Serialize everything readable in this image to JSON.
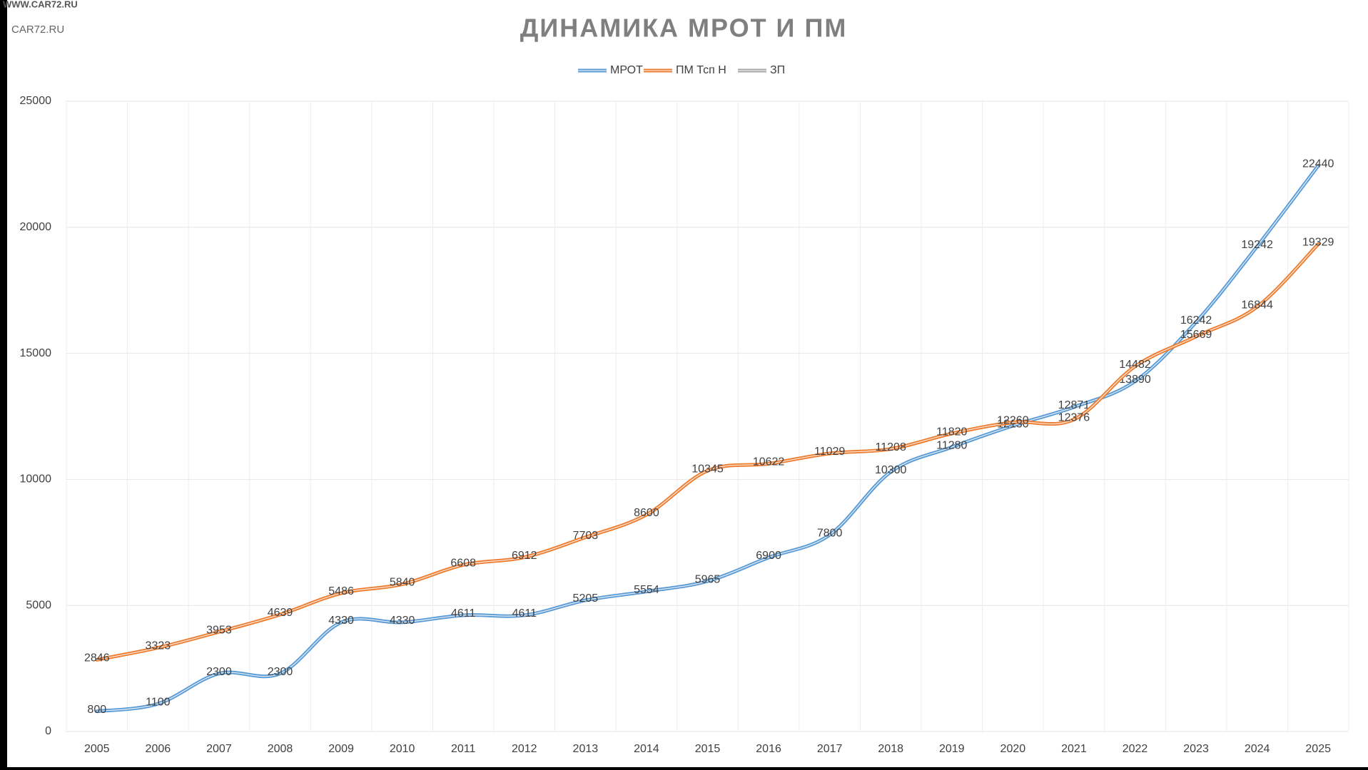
{
  "watermark": [
    "WWW.CAR72.RU",
    "CAR72.RU"
  ],
  "chart_data": {
    "type": "line",
    "title": "ДИНАМИКА МРОТ И ПМ",
    "categories": [
      "2005",
      "2006",
      "2007",
      "2008",
      "2009",
      "2010",
      "2011",
      "2012",
      "2013",
      "2014",
      "2015",
      "2016",
      "2017",
      "2018",
      "2019",
      "2020",
      "2021",
      "2022",
      "2023",
      "2024",
      "2025"
    ],
    "series": [
      {
        "name": "МРОТ",
        "color": "#5b9bd5",
        "values": [
          800,
          1100,
          2300,
          2300,
          4330,
          4330,
          4611,
          4611,
          5205,
          5554,
          5965,
          6900,
          7800,
          10300,
          11280,
          12130,
          12871,
          13890,
          16242,
          19242,
          22440
        ]
      },
      {
        "name": "ПМ Тсп Н",
        "color": "#ed7d31",
        "values": [
          2846,
          3323,
          3953,
          4639,
          5486,
          5840,
          6608,
          6912,
          7703,
          8600,
          10345,
          10622,
          11029,
          11208,
          11820,
          12260,
          12376,
          14482,
          15669,
          16844,
          19329
        ]
      },
      {
        "name": "ЗП",
        "color": "#a5a5a5",
        "values": [
          null,
          null,
          null,
          null,
          null,
          null,
          null,
          null,
          null,
          null,
          null,
          null,
          null,
          null,
          null,
          null,
          null,
          null,
          null,
          null,
          null
        ]
      }
    ],
    "ylim": [
      0,
      25000
    ],
    "yticks": [
      0,
      5000,
      10000,
      15000,
      20000,
      25000
    ],
    "grid": true,
    "legend": "top"
  }
}
